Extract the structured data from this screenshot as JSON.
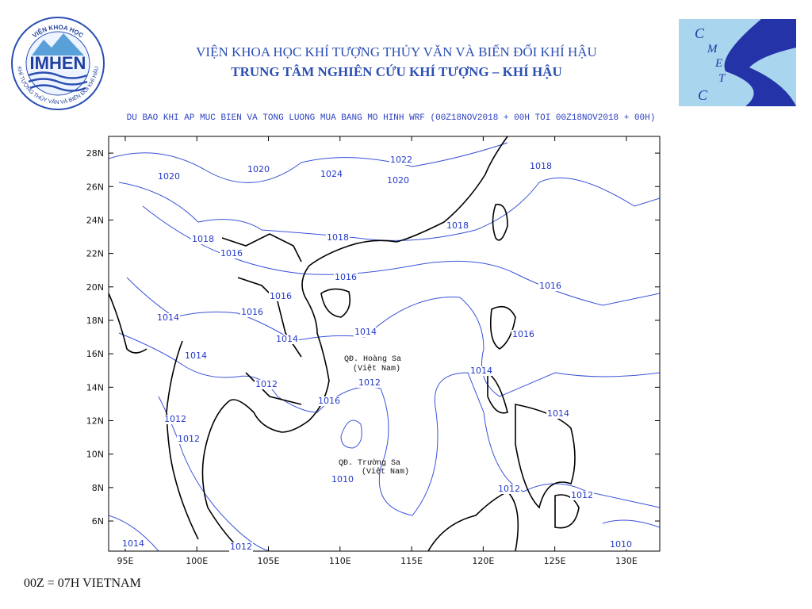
{
  "header": {
    "left_logo": {
      "arc_top": "VIỆN KHOA HỌC",
      "arc_bottom": "KHÍ TƯỢNG THỦY VĂN VÀ BIẾN ĐỔI KHÍ HẬU",
      "name": "IMHEN"
    },
    "title": "VIỆN KHOA HỌC KHÍ TƯỢNG THỦY VĂN VÀ BIẾN ĐỔI KHÍ HẬU",
    "subtitle": "TRUNG TÂM NGHIÊN CỨU KHÍ TƯỢNG – KHÍ HẬU",
    "right_logo": {
      "letters": [
        "C",
        "M",
        "E",
        "T",
        "C"
      ]
    }
  },
  "map": {
    "title": "DU BAO KHI AP MUC BIEN VA TONG LUONG MUA BANG MO HINH WRF (00Z18NOV2018 + 00H TOI 00Z18NOV2018 + 00H)",
    "xlim": [
      93.84,
      132.33
    ],
    "ylim": [
      4.2,
      29.0
    ],
    "xticks": [
      {
        "value": 95,
        "label": "95E"
      },
      {
        "value": 100,
        "label": "100E"
      },
      {
        "value": 105,
        "label": "105E"
      },
      {
        "value": 110,
        "label": "110E"
      },
      {
        "value": 115,
        "label": "115E"
      },
      {
        "value": 120,
        "label": "120E"
      },
      {
        "value": 125,
        "label": "125E"
      },
      {
        "value": 130,
        "label": "130E"
      }
    ],
    "yticks": [
      {
        "value": 6,
        "label": "6N"
      },
      {
        "value": 8,
        "label": "8N"
      },
      {
        "value": 10,
        "label": "10N"
      },
      {
        "value": 12,
        "label": "12N"
      },
      {
        "value": 14,
        "label": "14N"
      },
      {
        "value": 16,
        "label": "16N"
      },
      {
        "value": 18,
        "label": "18N"
      },
      {
        "value": 20,
        "label": "20N"
      },
      {
        "value": 22,
        "label": "22N"
      },
      {
        "value": 24,
        "label": "24N"
      },
      {
        "value": 26,
        "label": "26N"
      },
      {
        "value": 28,
        "label": "28N"
      }
    ],
    "contour_labels": [
      "1020",
      "1020",
      "1024",
      "1022",
      "1020",
      "1018",
      "1018",
      "1018",
      "1018",
      "1016",
      "1016",
      "1016",
      "1016",
      "1016",
      "1014",
      "1014",
      "1014",
      "1016",
      "1014",
      "1014",
      "1012",
      "1012",
      "1016",
      "1014",
      "1012",
      "1012",
      "1010",
      "1012",
      "1012",
      "1014",
      "1012",
      "1010"
    ],
    "places": [
      "QĐ. Hoàng Sa",
      "(Việt Nam)",
      "QĐ. Trường Sa",
      "(Việt Nam)"
    ]
  },
  "footer": "00Z = 07H VIETNAM"
}
